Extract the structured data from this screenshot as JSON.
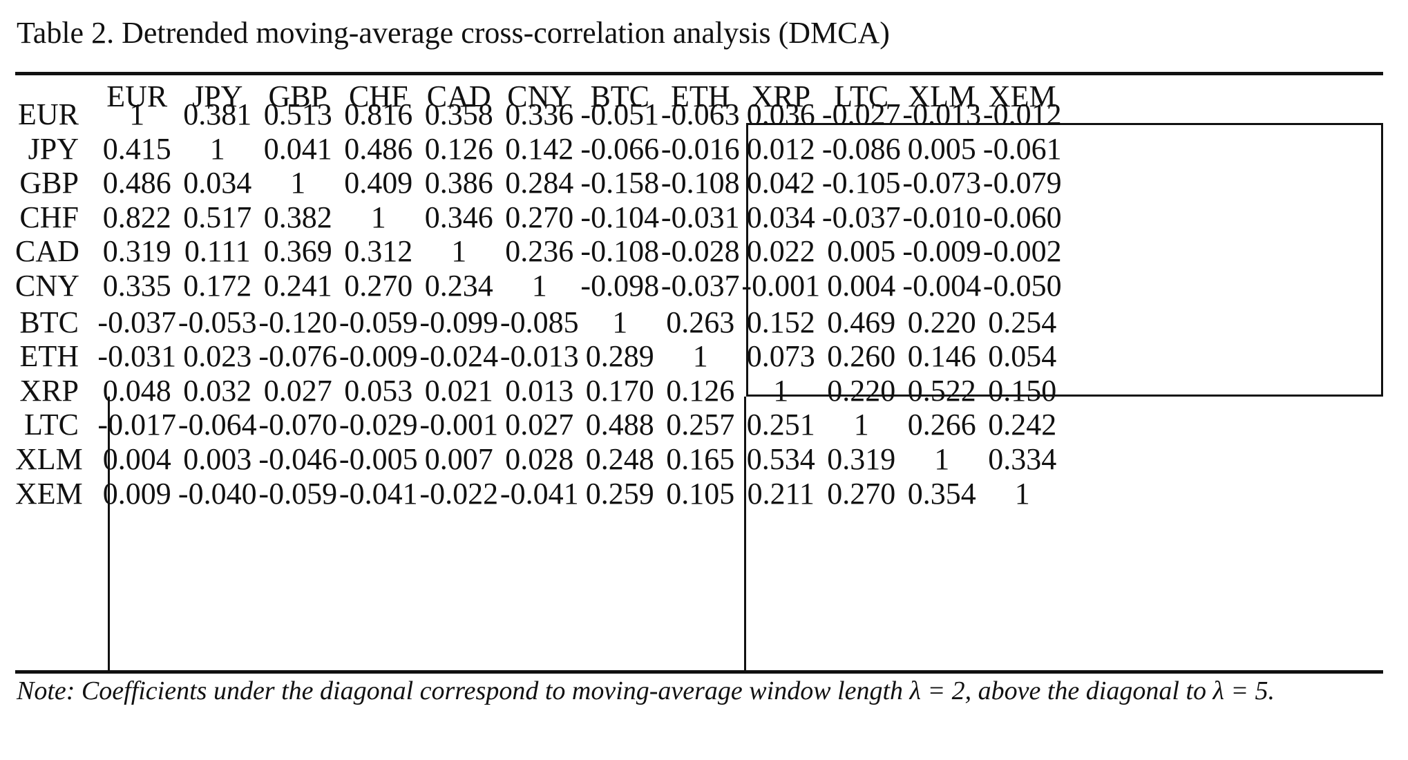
{
  "caption": "Table 2. Detrended moving-average cross-correlation analysis (DMCA)",
  "columns": [
    "EUR",
    "JPY",
    "GBP",
    "CHF",
    "CAD",
    "CNY",
    "BTC",
    "ETH",
    "XRP",
    "LTC",
    "XLM",
    "XEM"
  ],
  "rows": [
    {
      "label": "EUR",
      "values": [
        "1",
        "0.381",
        "0.513",
        "0.816",
        "0.358",
        "0.336",
        "-0.051",
        "-0.063",
        "0.036",
        "-0.027",
        "-0.013",
        "-0.012"
      ]
    },
    {
      "label": "JPY",
      "values": [
        "0.415",
        "1",
        "0.041",
        "0.486",
        "0.126",
        "0.142",
        "-0.066",
        "-0.016",
        "0.012",
        "-0.086",
        "0.005",
        "-0.061"
      ]
    },
    {
      "label": "GBP",
      "values": [
        "0.486",
        "0.034",
        "1",
        "0.409",
        "0.386",
        "0.284",
        "-0.158",
        "-0.108",
        "0.042",
        "-0.105",
        "-0.073",
        "-0.079"
      ]
    },
    {
      "label": "CHF",
      "values": [
        "0.822",
        "0.517",
        "0.382",
        "1",
        "0.346",
        "0.270",
        "-0.104",
        "-0.031",
        "0.034",
        "-0.037",
        "-0.010",
        "-0.060"
      ]
    },
    {
      "label": "CAD",
      "values": [
        "0.319",
        "0.111",
        "0.369",
        "0.312",
        "1",
        "0.236",
        "-0.108",
        "-0.028",
        "0.022",
        "0.005",
        "-0.009",
        "-0.002"
      ]
    },
    {
      "label": "CNY",
      "values": [
        "0.335",
        "0.172",
        "0.241",
        "0.270",
        "0.234",
        "1",
        "-0.098",
        "-0.037",
        "-0.001",
        "0.004",
        "-0.004",
        "-0.050"
      ]
    },
    {
      "label": "BTC",
      "values": [
        "-0.037",
        "-0.053",
        "-0.120",
        "-0.059",
        "-0.099",
        "-0.085",
        "1",
        "0.263",
        "0.152",
        "0.469",
        "0.220",
        "0.254"
      ]
    },
    {
      "label": "ETH",
      "values": [
        "-0.031",
        "0.023",
        "-0.076",
        "-0.009",
        "-0.024",
        "-0.013",
        "0.289",
        "1",
        "0.073",
        "0.260",
        "0.146",
        "0.054"
      ]
    },
    {
      "label": "XRP",
      "values": [
        "0.048",
        "0.032",
        "0.027",
        "0.053",
        "0.021",
        "0.013",
        "0.170",
        "0.126",
        "1",
        "0.220",
        "0.522",
        "0.150"
      ]
    },
    {
      "label": "LTC",
      "values": [
        "-0.017",
        "-0.064",
        "-0.070",
        "-0.029",
        "-0.001",
        "0.027",
        "0.488",
        "0.257",
        "0.251",
        "1",
        "0.266",
        "0.242"
      ]
    },
    {
      "label": "XLM",
      "values": [
        "0.004",
        "0.003",
        "-0.046",
        "-0.005",
        "0.007",
        "0.028",
        "0.248",
        "0.165",
        "0.534",
        "0.319",
        "1",
        "0.334"
      ]
    },
    {
      "label": "XEM",
      "values": [
        "0.009",
        "-0.040",
        "-0.059",
        "-0.041",
        "-0.022",
        "-0.041",
        "0.259",
        "0.105",
        "0.211",
        "0.270",
        "0.354",
        "1"
      ]
    }
  ],
  "note": "Note: Coefficients under the diagonal correspond to moving-average window length λ = 2, above the diagonal to λ = 5."
}
